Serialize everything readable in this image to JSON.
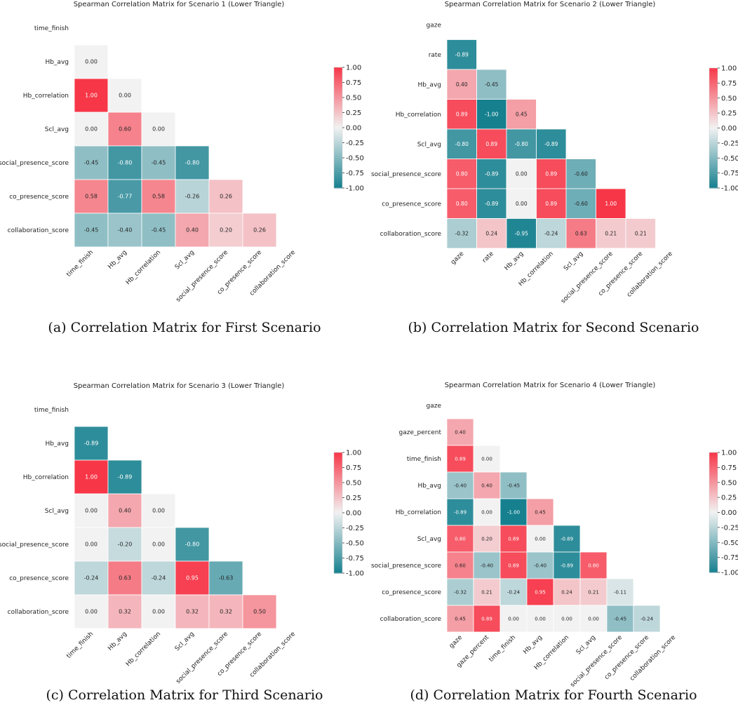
{
  "chart_data": [
    {
      "type": "heatmap",
      "title": "Spearman Correlation Matrix for Scenario 1 (Lower Triangle)",
      "caption": "(a) Correlation Matrix for First Scenario",
      "labels": [
        "time_finish",
        "Hb_avg",
        "Hb_correlation",
        "Scl_avg",
        "social_presence_score",
        "co_presence_score",
        "collaboration_score"
      ],
      "matrix": [
        [],
        [
          "0.00"
        ],
        [
          "1.00",
          "0.00"
        ],
        [
          "0.00",
          "0.60",
          "0.00"
        ],
        [
          "-0.45",
          "-0.80",
          "-0.45",
          "-0.80"
        ],
        [
          "0.58",
          "-0.77",
          "0.58",
          "-0.26",
          "0.26"
        ],
        [
          "-0.45",
          "-0.40",
          "-0.45",
          "0.40",
          "0.20",
          "0.26"
        ]
      ],
      "colorbar_ticks": [
        "1.00",
        "0.75",
        "0.50",
        "0.25",
        "0.00",
        "-0.25",
        "-0.50",
        "-0.75",
        "-1.00"
      ],
      "vmin": -1,
      "vmax": 1
    },
    {
      "type": "heatmap",
      "title": "Spearman Correlation Matrix for Scenario 2 (Lower Triangle)",
      "caption": "(b) Correlation Matrix for Second Scenario",
      "labels": [
        "gaze",
        "rate",
        "Hb_avg",
        "Hb_correlation",
        "Scl_avg",
        "social_presence_score",
        "co_presence_score",
        "collaboration_score"
      ],
      "matrix": [
        [],
        [
          "-0.89"
        ],
        [
          "0.40",
          "-0.45"
        ],
        [
          "0.89",
          "-1.00",
          "0.45"
        ],
        [
          "-0.80",
          "0.89",
          "-0.80",
          "-0.89"
        ],
        [
          "0.80",
          "-0.89",
          "0.00",
          "0.89",
          "-0.60"
        ],
        [
          "0.80",
          "-0.89",
          "0.00",
          "0.89",
          "-0.60",
          "1.00"
        ],
        [
          "-0.32",
          "0.24",
          "-0.95",
          "-0.24",
          "0.63",
          "0.21",
          "0.21"
        ]
      ],
      "colorbar_ticks": [
        "1.00",
        "0.75",
        "0.50",
        "0.25",
        "0.00",
        "-0.25",
        "-0.50",
        "-0.75",
        "-1.00"
      ],
      "vmin": -1,
      "vmax": 1
    },
    {
      "type": "heatmap",
      "title": "Spearman Correlation Matrix for Scenario 3 (Lower Triangle)",
      "caption": "(c) Correlation Matrix for Third Scenario",
      "labels": [
        "time_finish",
        "Hb_avg",
        "Hb_correlation",
        "Scl_avg",
        "social_presence_score",
        "co_presence_score",
        "collaboration_score"
      ],
      "matrix": [
        [],
        [
          "-0.89"
        ],
        [
          "1.00",
          "-0.89"
        ],
        [
          "0.00",
          "0.40",
          "0.00"
        ],
        [
          "0.00",
          "-0.20",
          "0.00",
          "-0.80"
        ],
        [
          "-0.24",
          "0.63",
          "-0.24",
          "0.95",
          "-0.63"
        ],
        [
          "0.00",
          "0.32",
          "0.00",
          "0.32",
          "0.32",
          "0.50"
        ]
      ],
      "colorbar_ticks": [
        "1.00",
        "0.75",
        "0.50",
        "0.25",
        "0.00",
        "-0.25",
        "-0.50",
        "-0.75",
        "-1.00"
      ],
      "vmin": -1,
      "vmax": 1
    },
    {
      "type": "heatmap",
      "title": "Spearman Correlation Matrix for Scenario 4 (Lower Triangle)",
      "caption": "(d) Correlation Matrix for Fourth Scenario",
      "labels": [
        "gaze",
        "gaze_percent",
        "time_finish",
        "Hb_avg",
        "Hb_correlation",
        "Scl_avg",
        "social_presence_score",
        "co_presence_score",
        "collaboration_score"
      ],
      "matrix": [
        [],
        [
          "0.40"
        ],
        [
          "0.89",
          "0.00"
        ],
        [
          "-0.40",
          "0.40",
          "-0.45"
        ],
        [
          "-0.89",
          "0.00",
          "-1.00",
          "0.45"
        ],
        [
          "0.80",
          "0.20",
          "0.89",
          "0.00",
          "-0.89"
        ],
        [
          "0.60",
          "-0.40",
          "0.89",
          "-0.40",
          "-0.89",
          "0.80"
        ],
        [
          "-0.32",
          "0.21",
          "-0.24",
          "0.95",
          "0.24",
          "0.21",
          "-0.11"
        ],
        [
          "0.45",
          "0.89",
          "0.00",
          "0.00",
          "0.00",
          "0.00",
          "-0.45",
          "-0.24"
        ]
      ],
      "colorbar_ticks": [
        "1.00",
        "0.75",
        "0.50",
        "0.25",
        "0.00",
        "-0.25",
        "-0.50",
        "-0.75",
        "-1.00"
      ],
      "vmin": -1,
      "vmax": 1
    }
  ]
}
